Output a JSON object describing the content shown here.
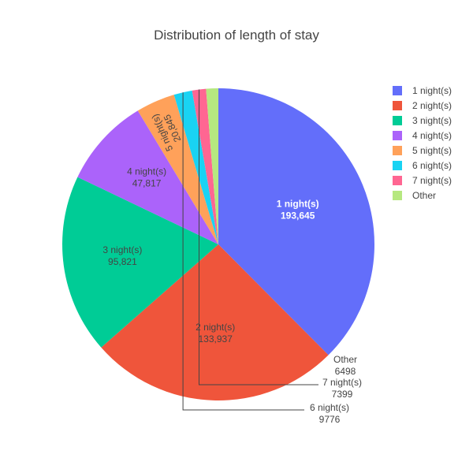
{
  "chart_data": {
    "type": "pie",
    "title": "Distribution of length of stay",
    "legend_position": "top-right",
    "slices": [
      {
        "label": "1 night(s)",
        "value": 193645,
        "value_text": "193,645",
        "color": "#636efa",
        "label_color": "#ffffff"
      },
      {
        "label": "2 night(s)",
        "value": 133937,
        "value_text": "133,937",
        "color": "#ef553b",
        "label_color": "#444444"
      },
      {
        "label": "3 night(s)",
        "value": 95821,
        "value_text": "95,821",
        "color": "#00cc96",
        "label_color": "#444444"
      },
      {
        "label": "4 night(s)",
        "value": 47817,
        "value_text": "47,817",
        "color": "#ab63fa",
        "label_color": "#444444"
      },
      {
        "label": "5 night(s)",
        "value": 20845,
        "value_text": "20,845",
        "color": "#ffa15a",
        "label_color": "#444444"
      },
      {
        "label": "6 night(s)",
        "value": 9776,
        "value_text": "9776",
        "color": "#19d3f3",
        "label_color": "#444444"
      },
      {
        "label": "7 night(s)",
        "value": 7399,
        "value_text": "7399",
        "color": "#ff6692",
        "label_color": "#444444"
      },
      {
        "label": "Other",
        "value": 6498,
        "value_text": "6498",
        "color": "#b6e880",
        "label_color": "#444444"
      }
    ]
  }
}
